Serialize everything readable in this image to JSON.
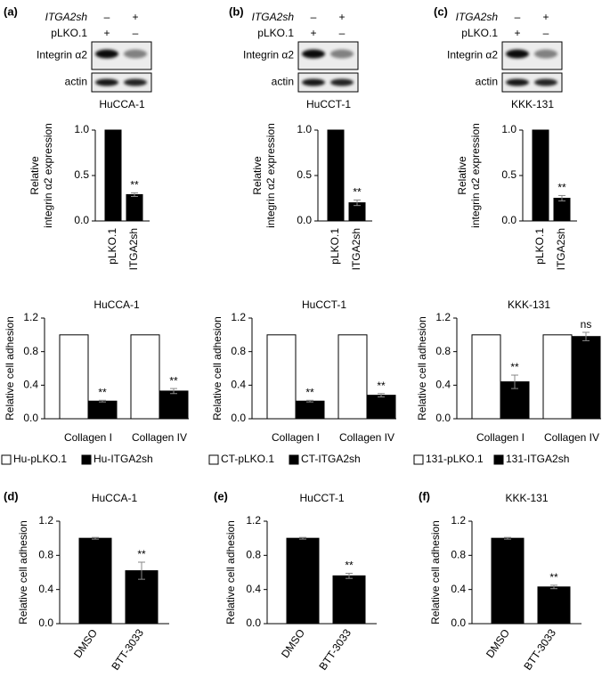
{
  "panel_labels": [
    "(a)",
    "(b)",
    "(c)",
    "(d)",
    "(e)",
    "(f)"
  ],
  "blots": [
    {
      "rows": [
        {
          "label": "ITGA2sh",
          "marks": [
            "–",
            "+"
          ]
        },
        {
          "label": "pLKO.1",
          "marks": [
            "+",
            "–"
          ]
        }
      ],
      "bands": [
        "Integrin α2",
        "actin"
      ],
      "cell_line": "HuCCA-1"
    },
    {
      "rows": [
        {
          "label": "ITGA2sh",
          "marks": [
            "–",
            "+"
          ]
        },
        {
          "label": "pLKO.1",
          "marks": [
            "+",
            "–"
          ]
        }
      ],
      "bands": [
        "Integrin α2",
        "actin"
      ],
      "cell_line": "HuCCT-1"
    },
    {
      "rows": [
        {
          "label": "ITGA2sh",
          "marks": [
            "–",
            "+"
          ]
        },
        {
          "label": "pLKO.1",
          "marks": [
            "+",
            "–"
          ]
        }
      ],
      "bands": [
        "Integrin α2",
        "actin"
      ],
      "cell_line": "KKK-131"
    }
  ],
  "chart_data": [
    {
      "type": "bar",
      "ylabel": [
        "Relative",
        "integrin α2 expression"
      ],
      "categories": [
        "pLKO.1",
        "ITGA2sh"
      ],
      "values": [
        1.0,
        0.29
      ],
      "errors": [
        null,
        0.02
      ],
      "annotations": [
        null,
        "**"
      ],
      "color": "#000000",
      "ylim": [
        0,
        1
      ],
      "yticks": [
        {
          "value": 0,
          "label": "0.0"
        },
        0.5,
        {
          "value": 1,
          "label": "1.0"
        }
      ]
    },
    {
      "type": "bar",
      "ylabel": [
        "Relative",
        "integrin α2 expression"
      ],
      "categories": [
        "pLKO.1",
        "ITGA2sh"
      ],
      "values": [
        1.0,
        0.2
      ],
      "errors": [
        null,
        0.03
      ],
      "annotations": [
        null,
        "**"
      ],
      "color": "#000000",
      "ylim": [
        0,
        1
      ],
      "yticks": [
        {
          "value": 0,
          "label": "0.0"
        },
        0.5,
        {
          "value": 1,
          "label": "1.0"
        }
      ]
    },
    {
      "type": "bar",
      "ylabel": [
        "Relative",
        "integrin α2 expression"
      ],
      "categories": [
        "pLKO.1",
        "ITGA2sh"
      ],
      "values": [
        1.0,
        0.25
      ],
      "errors": [
        null,
        0.03
      ],
      "annotations": [
        null,
        "**"
      ],
      "color": "#000000",
      "ylim": [
        0,
        1
      ],
      "yticks": [
        {
          "value": 0,
          "label": "0.0"
        },
        0.5,
        {
          "value": 1,
          "label": "1.0"
        }
      ]
    },
    {
      "type": "grouped",
      "title": "HuCCA-1",
      "ylabel": [
        "Relative cell adhesion"
      ],
      "categories": [
        "Collagen I",
        "Collagen IV"
      ],
      "series": [
        {
          "name": "Hu-pLKO.1",
          "color": "#ffffff",
          "values": [
            1.0,
            1.0
          ],
          "errors": [
            null,
            null
          ],
          "annotations": [
            null,
            null
          ]
        },
        {
          "name": "Hu-ITGA2sh",
          "color": "#000000",
          "values": [
            0.21,
            0.33
          ],
          "errors": [
            0.01,
            0.03
          ],
          "annotations": [
            "**",
            "**"
          ]
        }
      ],
      "ylim": [
        0,
        1.2
      ],
      "yticks": [
        {
          "value": 0,
          "label": "0.0"
        },
        0.4,
        0.8,
        1.2
      ]
    },
    {
      "type": "grouped",
      "title": "HuCCT-1",
      "ylabel": [
        "Relative cell adhesion"
      ],
      "categories": [
        "Collagen I",
        "Collagen IV"
      ],
      "series": [
        {
          "name": "CT-pLKO.1",
          "color": "#ffffff",
          "values": [
            1.0,
            1.0
          ],
          "errors": [
            null,
            null
          ],
          "annotations": [
            null,
            null
          ]
        },
        {
          "name": "CT-ITGA2sh",
          "color": "#000000",
          "values": [
            0.21,
            0.28
          ],
          "errors": [
            0.01,
            0.02
          ],
          "annotations": [
            "**",
            "**"
          ]
        }
      ],
      "ylim": [
        0,
        1.2
      ],
      "yticks": [
        {
          "value": 0,
          "label": "0.0"
        },
        0.4,
        0.8,
        1.2
      ]
    },
    {
      "type": "grouped",
      "title": "KKK-131",
      "ylabel": [
        "Relative cell adhesion"
      ],
      "categories": [
        "Collagen I",
        "Collagen IV"
      ],
      "series": [
        {
          "name": "131-pLKO.1",
          "color": "#ffffff",
          "values": [
            1.0,
            1.0
          ],
          "errors": [
            null,
            null
          ],
          "annotations": [
            null,
            null
          ]
        },
        {
          "name": "131-ITGA2sh",
          "color": "#000000",
          "values": [
            0.44,
            0.98
          ],
          "errors": [
            0.08,
            0.05
          ],
          "annotations": [
            "**",
            "ns"
          ]
        }
      ],
      "ylim": [
        0,
        1.2
      ],
      "yticks": [
        {
          "value": 0,
          "label": "0.0"
        },
        0.4,
        0.8,
        1.2
      ]
    },
    {
      "type": "bar",
      "title": "HuCCA-1",
      "ylabel": [
        "Relative cell adhesion"
      ],
      "categories": [
        "DMSO",
        "BTT-3033"
      ],
      "values": [
        1.0,
        0.62
      ],
      "errors": [
        0.01,
        0.1
      ],
      "annotations": [
        null,
        "**"
      ],
      "color": "#000000",
      "ylim": [
        0,
        1.2
      ],
      "yticks": [
        {
          "value": 0,
          "label": "0.0"
        },
        0.4,
        0.8,
        1.2
      ]
    },
    {
      "type": "bar",
      "title": "HuCCT-1",
      "ylabel": [
        "Relative cell adhesion"
      ],
      "categories": [
        "DMSO",
        "BTT-3033"
      ],
      "values": [
        1.0,
        0.56
      ],
      "errors": [
        0.01,
        0.03
      ],
      "annotations": [
        null,
        "**"
      ],
      "color": "#000000",
      "ylim": [
        0,
        1.2
      ],
      "yticks": [
        {
          "value": 0,
          "label": "0.0"
        },
        0.4,
        0.8,
        1.2
      ]
    },
    {
      "type": "bar",
      "title": "KKK-131",
      "ylabel": [
        "Relative cell adhesion"
      ],
      "categories": [
        "DMSO",
        "BTT-3033"
      ],
      "values": [
        1.0,
        0.43
      ],
      "errors": [
        0.01,
        0.02
      ],
      "annotations": [
        null,
        "**"
      ],
      "color": "#000000",
      "ylim": [
        0,
        1.2
      ],
      "yticks": [
        {
          "value": 0,
          "label": "0.0"
        },
        0.4,
        0.8,
        1.2
      ]
    }
  ]
}
